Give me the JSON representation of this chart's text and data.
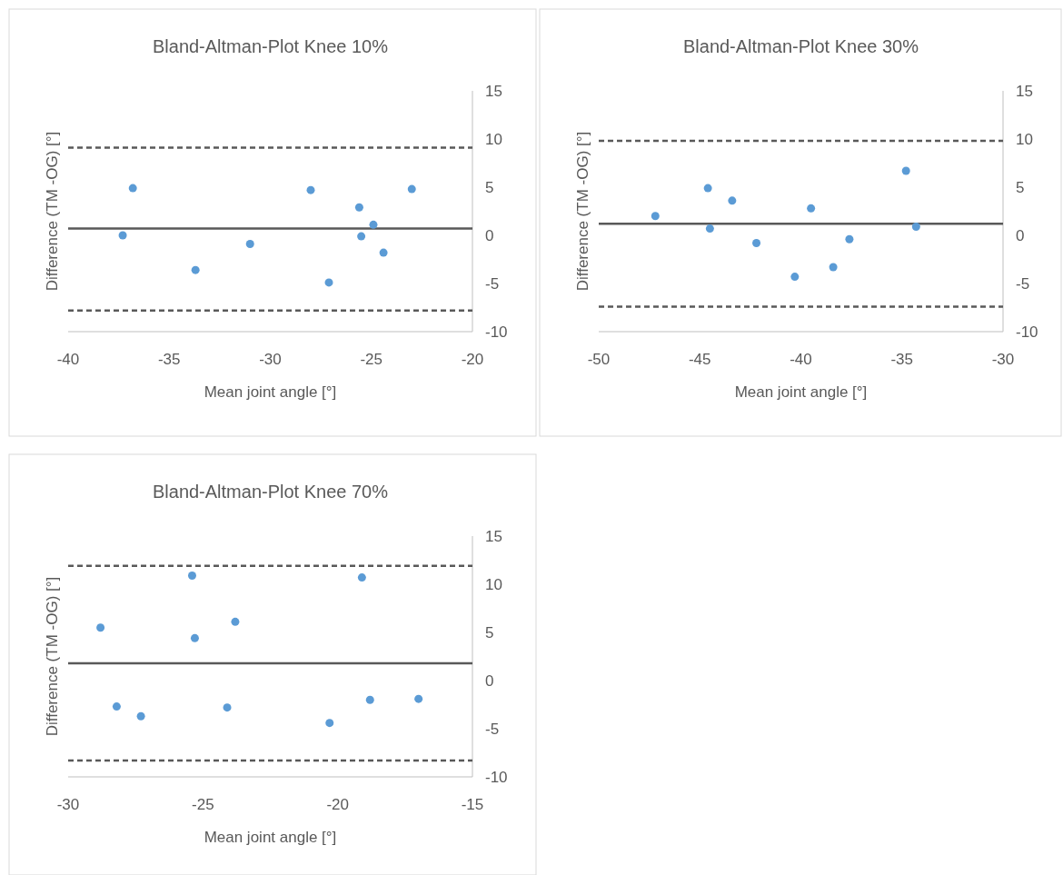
{
  "chart_data": [
    {
      "type": "scatter",
      "title": "Bland-Altman-Plot Knee 10%",
      "xlabel": "Mean joint angle [°]",
      "ylabel": "Difference (TM -OG) [°]",
      "xlim": [
        -40,
        -20
      ],
      "xticks": [
        -40,
        -35,
        -30,
        -25,
        -20
      ],
      "ylim": [
        -10,
        15
      ],
      "yticks": [
        -10,
        -5,
        0,
        5,
        10,
        15
      ],
      "marker": "circle",
      "series": [
        {
          "color": "#5b9bd5",
          "x": [
            -36.8,
            -37.3,
            -33.7,
            -31.0,
            -28.0,
            -27.1,
            -25.6,
            -25.5,
            -24.9,
            -24.4,
            -23.0
          ],
          "values": [
            4.9,
            0.0,
            -3.6,
            -0.9,
            4.7,
            -4.9,
            2.9,
            -0.1,
            1.1,
            -1.8,
            4.8
          ]
        }
      ],
      "ref_lines": [
        {
          "axis": "y",
          "value": 0.7,
          "color": "#595959",
          "line_style": "solid"
        },
        {
          "axis": "y",
          "value": 9.1,
          "color": "#595959",
          "line_style": "dashed"
        },
        {
          "axis": "y",
          "value": -7.8,
          "color": "#595959",
          "line_style": "dashed"
        }
      ]
    },
    {
      "type": "scatter",
      "title": "Bland-Altman-Plot Knee 30%",
      "xlabel": "Mean joint angle [°]",
      "ylabel": "Difference (TM -OG) [°]",
      "xlim": [
        -50,
        -30
      ],
      "xticks": [
        -50,
        -45,
        -40,
        -35,
        -30
      ],
      "ylim": [
        -10,
        15
      ],
      "yticks": [
        -10,
        -5,
        0,
        5,
        10,
        15
      ],
      "marker": "circle",
      "series": [
        {
          "color": "#5b9bd5",
          "x": [
            -47.2,
            -44.6,
            -44.5,
            -43.4,
            -42.2,
            -40.3,
            -39.5,
            -38.4,
            -37.6,
            -34.8,
            -34.3
          ],
          "values": [
            2.0,
            4.9,
            0.7,
            3.6,
            -0.8,
            -4.3,
            2.8,
            -3.3,
            -0.4,
            6.7,
            0.9
          ]
        }
      ],
      "ref_lines": [
        {
          "axis": "y",
          "value": 1.2,
          "color": "#595959",
          "line_style": "solid"
        },
        {
          "axis": "y",
          "value": 9.8,
          "color": "#595959",
          "line_style": "dashed"
        },
        {
          "axis": "y",
          "value": -7.4,
          "color": "#595959",
          "line_style": "dashed"
        }
      ]
    },
    {
      "type": "scatter",
      "title": "Bland-Altman-Plot Knee 70%",
      "xlabel": "Mean joint angle [°]",
      "ylabel": "Difference (TM -OG) [°]",
      "xlim": [
        -30,
        -15
      ],
      "xticks": [
        -30,
        -25,
        -20,
        -15
      ],
      "ylim": [
        -10,
        15
      ],
      "yticks": [
        -10,
        -5,
        0,
        5,
        10,
        15
      ],
      "marker": "circle",
      "series": [
        {
          "color": "#5b9bd5",
          "x": [
            -28.8,
            -28.2,
            -27.3,
            -25.4,
            -25.3,
            -24.1,
            -23.8,
            -20.3,
            -19.1,
            -18.8,
            -17.0
          ],
          "values": [
            5.5,
            -2.7,
            -3.7,
            10.9,
            4.4,
            -2.8,
            6.1,
            -4.4,
            10.7,
            -2.0,
            -1.9
          ]
        }
      ],
      "ref_lines": [
        {
          "axis": "y",
          "value": 1.8,
          "color": "#595959",
          "line_style": "solid"
        },
        {
          "axis": "y",
          "value": 11.9,
          "color": "#595959",
          "line_style": "dashed"
        },
        {
          "axis": "y",
          "value": -8.3,
          "color": "#595959",
          "line_style": "dashed"
        }
      ]
    }
  ]
}
